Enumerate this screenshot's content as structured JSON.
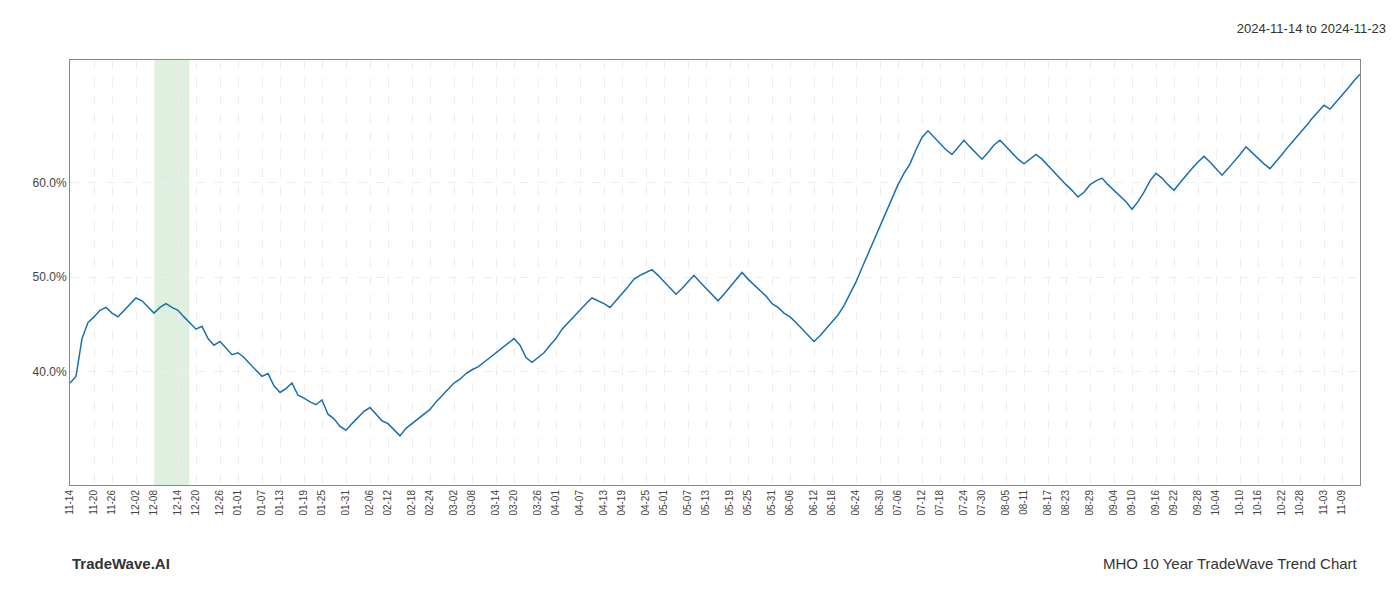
{
  "chart_data": {
    "type": "line",
    "title": "2024-11-14 to 2024-11-23",
    "annotations": [
      "TradeWave.AI",
      "MHO 10 Year TradeWave Trend Chart"
    ],
    "categories": [
      "11-14",
      null,
      null,
      null,
      "11-20",
      null,
      null,
      "11-26",
      null,
      null,
      null,
      "12-02",
      null,
      null,
      "12-08",
      null,
      null,
      null,
      "12-14",
      null,
      null,
      "12-20",
      null,
      null,
      null,
      "12-26",
      null,
      null,
      "01-01",
      null,
      null,
      null,
      "01-07",
      null,
      null,
      "01-13",
      null,
      null,
      null,
      "01-19",
      null,
      null,
      "01-25",
      null,
      null,
      null,
      "01-31",
      null,
      null,
      null,
      "02-06",
      null,
      null,
      "02-12",
      null,
      null,
      null,
      "02-18",
      null,
      null,
      "02-24",
      null,
      null,
      null,
      "03-02",
      null,
      null,
      "03-08",
      null,
      null,
      null,
      "03-14",
      null,
      null,
      "03-20",
      null,
      null,
      null,
      "03-26",
      null,
      null,
      "04-01",
      null,
      null,
      null,
      "04-07",
      null,
      null,
      null,
      "04-13",
      null,
      null,
      "04-19",
      null,
      null,
      null,
      "04-25",
      null,
      null,
      "05-01",
      null,
      null,
      null,
      "05-07",
      null,
      null,
      "05-13",
      null,
      null,
      null,
      "05-19",
      null,
      null,
      "05-25",
      null,
      null,
      null,
      "05-31",
      null,
      null,
      "06-06",
      null,
      null,
      null,
      "06-12",
      null,
      null,
      "06-18",
      null,
      null,
      null,
      "06-24",
      null,
      null,
      null,
      "06-30",
      null,
      null,
      "07-06",
      null,
      null,
      null,
      "07-12",
      null,
      null,
      "07-18",
      null,
      null,
      null,
      "07-24",
      null,
      null,
      "07-30",
      null,
      null,
      null,
      "08-05",
      null,
      null,
      "08-11",
      null,
      null,
      null,
      "08-17",
      null,
      null,
      "08-23",
      null,
      null,
      null,
      "08-29",
      null,
      null,
      null,
      "09-04",
      null,
      null,
      "09-10",
      null,
      null,
      null,
      "09-16",
      null,
      null,
      "09-22",
      null,
      null,
      null,
      "09-28",
      null,
      null,
      "10-04",
      null,
      null,
      null,
      "10-10",
      null,
      null,
      "10-16",
      null,
      null,
      null,
      "10-22",
      null,
      null,
      "10-28",
      null,
      null,
      null,
      "11-03",
      null,
      null,
      "11-09",
      null,
      null,
      null
    ],
    "values": [
      38.8,
      39.5,
      43.5,
      45.2,
      45.8,
      46.5,
      46.8,
      46.2,
      45.8,
      46.5,
      47.2,
      47.8,
      47.5,
      46.8,
      46.2,
      46.8,
      47.2,
      46.8,
      46.5,
      45.8,
      45.2,
      44.5,
      44.8,
      43.5,
      42.8,
      43.2,
      42.5,
      41.8,
      42.0,
      41.5,
      40.8,
      40.2,
      39.5,
      39.8,
      38.5,
      37.8,
      38.2,
      38.8,
      37.5,
      37.2,
      36.8,
      36.5,
      37.0,
      35.5,
      35.0,
      34.2,
      33.8,
      34.5,
      35.2,
      35.8,
      36.2,
      35.5,
      34.8,
      34.5,
      33.8,
      33.2,
      34.0,
      34.5,
      35.0,
      35.5,
      36.0,
      36.8,
      37.5,
      38.2,
      38.8,
      39.2,
      39.8,
      40.2,
      40.5,
      41.0,
      41.5,
      42.0,
      42.5,
      43.0,
      43.5,
      42.8,
      41.5,
      41.0,
      41.5,
      42.0,
      42.8,
      43.5,
      44.5,
      45.2,
      45.8,
      46.5,
      47.2,
      47.8,
      47.5,
      47.2,
      46.8,
      47.5,
      48.2,
      49.0,
      49.8,
      50.2,
      50.5,
      50.8,
      50.2,
      49.5,
      48.8,
      48.2,
      48.8,
      49.5,
      50.2,
      49.5,
      48.8,
      48.2,
      47.5,
      48.2,
      49.0,
      49.8,
      50.5,
      49.8,
      49.2,
      48.5,
      48.0,
      47.2,
      46.8,
      46.2,
      45.8,
      45.2,
      44.5,
      43.8,
      43.2,
      43.8,
      44.5,
      45.2,
      46.0,
      47.0,
      48.2,
      49.5,
      51.0,
      52.5,
      54.0,
      55.5,
      57.0,
      58.5,
      59.8,
      61.0,
      62.0,
      63.5,
      64.8,
      65.5,
      64.8,
      64.2,
      63.5,
      63.0,
      63.8,
      64.5,
      63.8,
      63.2,
      62.5,
      63.2,
      64.0,
      64.5,
      63.8,
      63.2,
      62.5,
      62.0,
      62.5,
      63.0,
      62.5,
      61.8,
      61.2,
      60.5,
      59.8,
      59.2,
      58.5,
      59.0,
      59.8,
      60.2,
      60.5,
      59.8,
      59.2,
      58.5,
      58.0,
      57.2,
      58.0,
      59.0,
      60.2,
      61.0,
      60.5,
      59.8,
      59.2,
      60.0,
      60.8,
      61.5,
      62.2,
      62.8,
      62.2,
      61.5,
      60.8,
      61.5,
      62.2,
      63.0,
      63.8,
      63.2,
      62.5,
      62.0,
      61.5,
      62.2,
      63.0,
      63.8,
      64.5,
      65.2,
      66.0,
      66.8,
      67.5,
      68.2,
      67.8,
      68.5,
      69.2,
      70.0,
      70.8,
      71.5
    ],
    "color": "#1a6faf",
    "highlight": {
      "range": [
        14.04,
        19.872
      ],
      "color": "#c8e6c9"
    },
    "ylim": [
      28,
      73
    ],
    "yticks": [
      {
        "value": 40,
        "label": "40.0%"
      },
      {
        "value": 50,
        "label": "50.0%"
      },
      {
        "value": 60,
        "label": "60.0%"
      }
    ],
    "grid": true
  }
}
